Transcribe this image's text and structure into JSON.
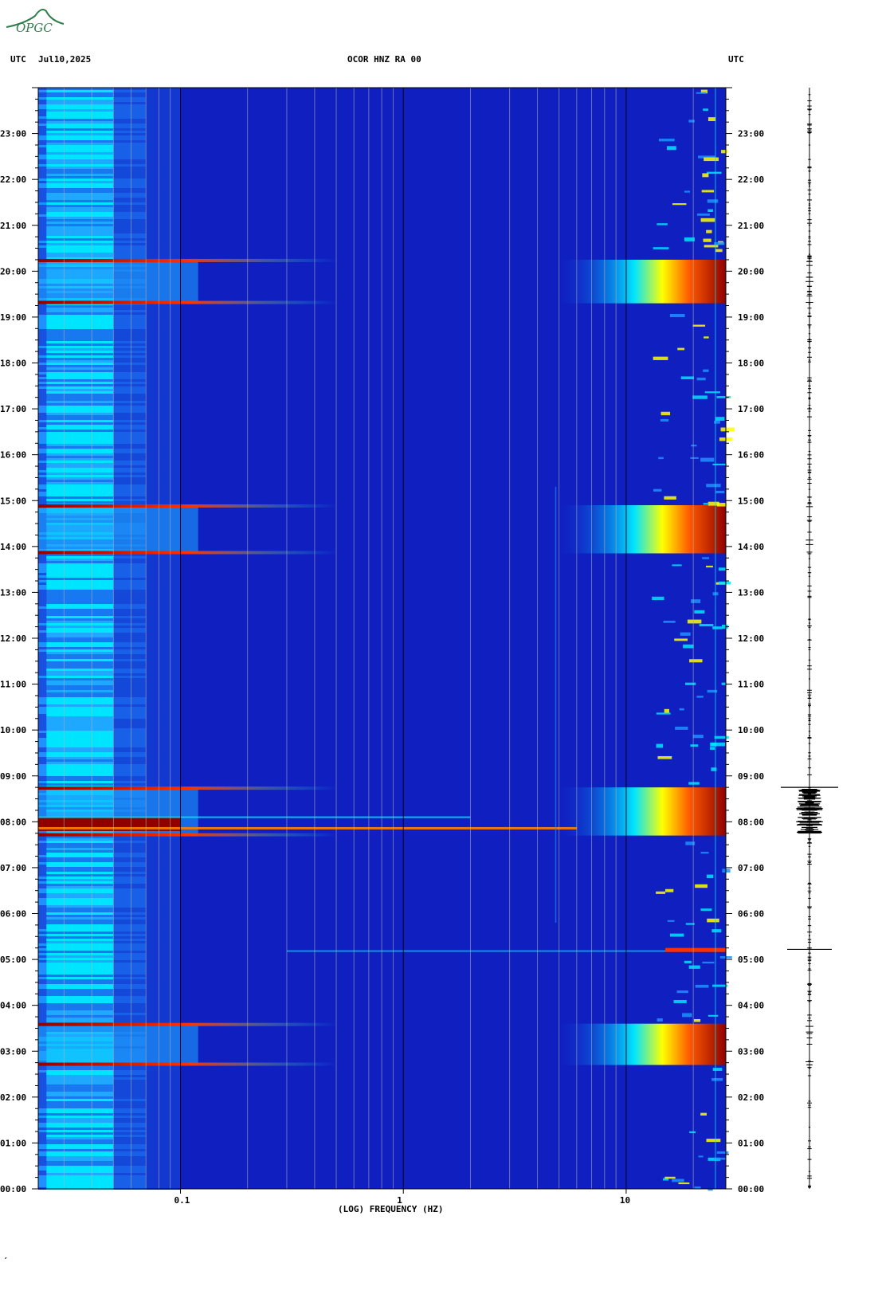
{
  "logo": {
    "text": "OPGC"
  },
  "header": {
    "left_tz": "UTC",
    "date": "Jul10,2025",
    "station": "OCOR HNZ RA 00",
    "right_tz": "UTC"
  },
  "footer_mark": "′",
  "chart_data": {
    "type": "heatmap",
    "title": "OCOR HNZ RA 00",
    "xlabel": "(LOG) FREQUENCY (HZ)",
    "ylabel": "",
    "x_scale": "log",
    "xlim": [
      0.023,
      28
    ],
    "x_ticks": [
      0.1,
      1,
      10
    ],
    "x_tick_labels": [
      "0.1",
      "1",
      "10"
    ],
    "ylim_hours": [
      0,
      24
    ],
    "y_ticks_hours": [
      0,
      1,
      2,
      3,
      4,
      5,
      6,
      7,
      8,
      9,
      10,
      11,
      12,
      13,
      14,
      15,
      16,
      17,
      18,
      19,
      20,
      21,
      22,
      23
    ],
    "y_tick_labels": [
      "00:00",
      "01:00",
      "02:00",
      "03:00",
      "04:00",
      "05:00",
      "06:00",
      "07:00",
      "08:00",
      "09:00",
      "10:00",
      "11:00",
      "12:00",
      "13:00",
      "14:00",
      "15:00",
      "16:00",
      "17:00",
      "18:00",
      "19:00",
      "20:00",
      "21:00",
      "22:00",
      "23:00"
    ],
    "colormap": [
      "#00008b",
      "#1030d8",
      "#1e90ff",
      "#00e5ff",
      "#7fff7f",
      "#ffff00",
      "#ff7f00",
      "#e00000",
      "#800000"
    ],
    "background_color": "#1020c0",
    "high_energy_windows_hours": [
      [
        2.7,
        3.6
      ],
      [
        7.7,
        8.75
      ],
      [
        13.85,
        14.9
      ],
      [
        19.3,
        20.25
      ]
    ],
    "trace_events_hours": [
      8.75,
      5.22
    ]
  }
}
